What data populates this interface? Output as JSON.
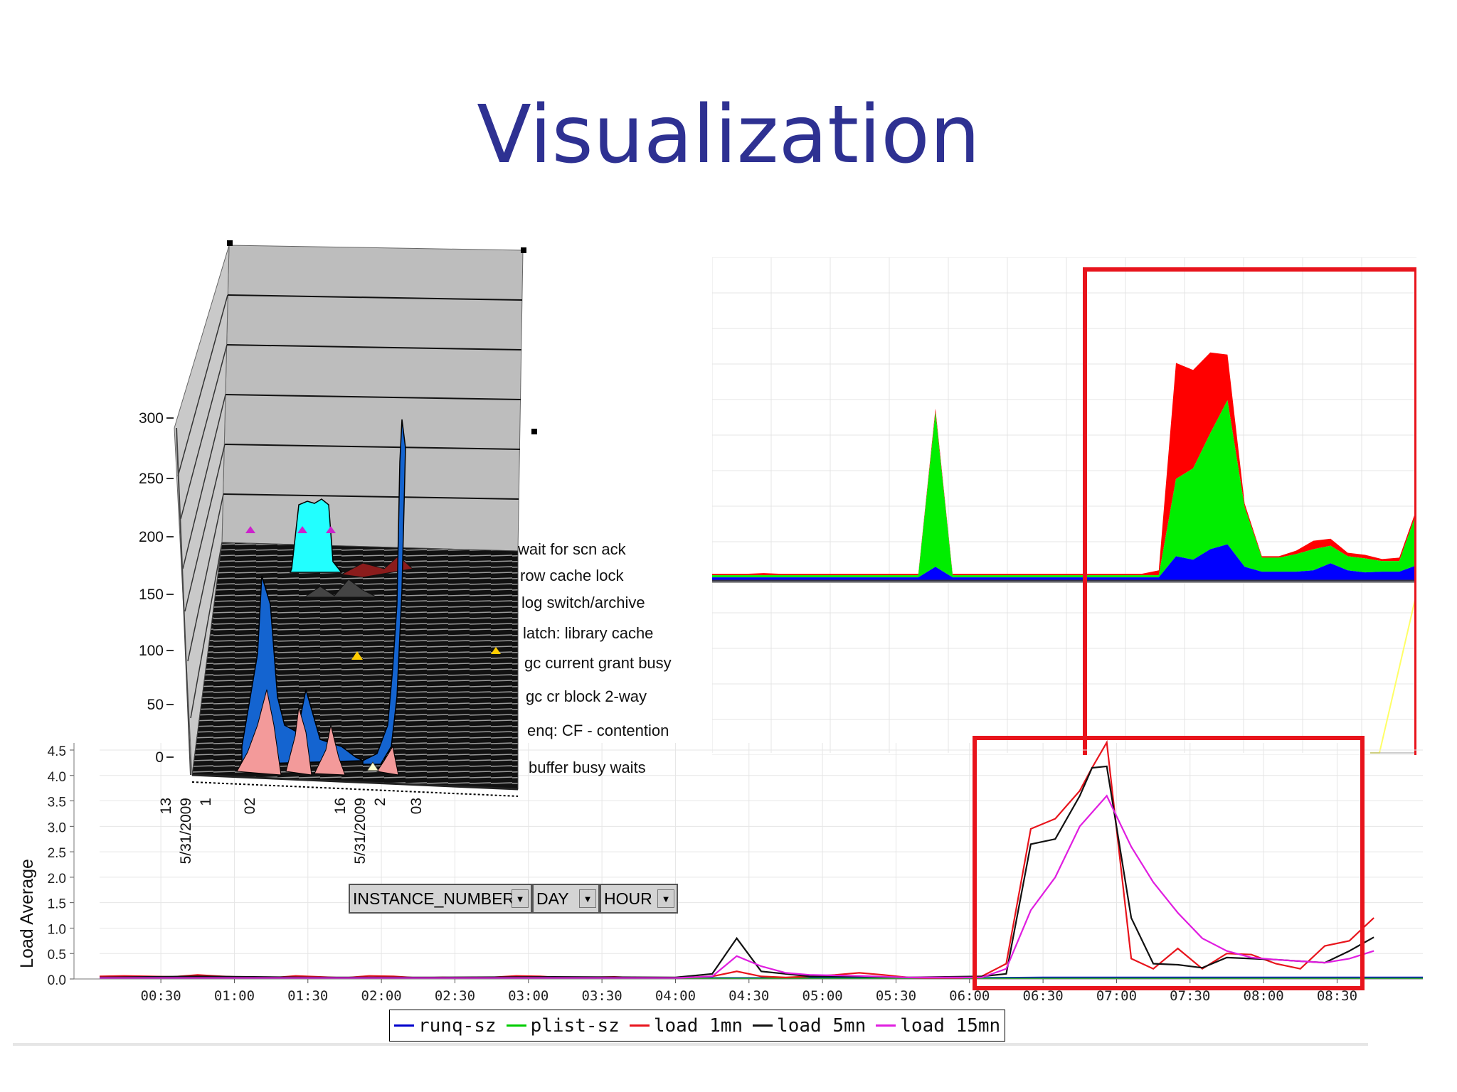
{
  "slide": {
    "title": "Visualization"
  },
  "pivot_fields": [
    "INSTANCE_NUMBER",
    "DAY",
    "HOUR"
  ],
  "colors": {
    "title": "#2e3192",
    "highlight": "#e8141c"
  },
  "chart_data": [
    {
      "type": "area",
      "stacked": true,
      "description_id": "top-right-stacked-area",
      "axes_labels_visible": false,
      "series": [
        {
          "color": "#0000ff",
          "values": [
            5,
            5,
            5,
            5,
            5,
            5,
            5,
            5,
            5,
            5,
            5,
            5,
            5,
            20,
            5,
            5,
            5,
            5,
            5,
            5,
            5,
            5,
            5,
            5,
            5,
            5,
            5,
            35,
            30,
            45,
            52,
            20,
            13,
            13,
            13,
            15,
            25,
            15,
            12,
            13,
            13,
            22
          ]
        },
        {
          "color": "#00ee00",
          "values": [
            3,
            3,
            3,
            3,
            3,
            3,
            3,
            3,
            3,
            3,
            3,
            3,
            3,
            220,
            3,
            3,
            3,
            3,
            3,
            3,
            3,
            3,
            3,
            3,
            3,
            3,
            3,
            110,
            130,
            165,
            205,
            85,
            20,
            20,
            25,
            30,
            25,
            20,
            20,
            15,
            15,
            75
          ]
        },
        {
          "color": "#ff0000",
          "values": [
            2,
            2,
            2,
            3,
            2,
            2,
            2,
            2,
            2,
            2,
            2,
            2,
            2,
            5,
            2,
            2,
            2,
            2,
            2,
            2,
            2,
            2,
            2,
            2,
            2,
            2,
            7,
            165,
            140,
            115,
            65,
            5,
            2,
            2,
            5,
            12,
            10,
            5,
            5,
            3,
            5,
            5
          ]
        }
      ],
      "highlight_box": "red"
    },
    {
      "type": "line",
      "description_id": "load-average",
      "ylabel": "Load Average",
      "ylim": [
        0,
        4.5
      ],
      "yticks": [
        "0.0",
        "0.5",
        "1.0",
        "1.5",
        "2.0",
        "2.5",
        "3.0",
        "3.5",
        "4.0",
        "4.5"
      ],
      "x_ticks": [
        "00:30",
        "01:00",
        "01:30",
        "02:00",
        "02:30",
        "03:00",
        "03:30",
        "04:00",
        "04:30",
        "05:00",
        "05:30",
        "06:00",
        "06:30",
        "07:00",
        "07:30",
        "08:00",
        "08:30"
      ],
      "x_range_minutes": [
        5,
        545
      ],
      "series": [
        {
          "name": "runq-sz",
          "color": "#0000cc",
          "points": [
            [
              5,
              0.03
            ],
            [
              30,
              0.03
            ],
            [
              60,
              0.03
            ],
            [
              90,
              0.02
            ],
            [
              120,
              0.02
            ],
            [
              150,
              0.02
            ],
            [
              180,
              0.02
            ],
            [
              210,
              0.02
            ],
            [
              240,
              0.02
            ],
            [
              270,
              0.02
            ],
            [
              300,
              0.02
            ],
            [
              330,
              0.02
            ],
            [
              360,
              0.02
            ],
            [
              390,
              0.03
            ],
            [
              420,
              0.03
            ],
            [
              450,
              0.03
            ],
            [
              480,
              0.03
            ],
            [
              510,
              0.03
            ],
            [
              545,
              0.03
            ]
          ]
        },
        {
          "name": "plist-sz",
          "color": "#00cc00",
          "points": [
            [
              5,
              0.01
            ],
            [
              545,
              0.01
            ]
          ]
        },
        {
          "name": "load 1mn",
          "color": "#e8141c",
          "points": [
            [
              5,
              0.05
            ],
            [
              15,
              0.06
            ],
            [
              25,
              0.05
            ],
            [
              35,
              0.04
            ],
            [
              45,
              0.08
            ],
            [
              55,
              0.05
            ],
            [
              65,
              0.03
            ],
            [
              75,
              0.02
            ],
            [
              85,
              0.06
            ],
            [
              95,
              0.04
            ],
            [
              105,
              0.02
            ],
            [
              115,
              0.06
            ],
            [
              125,
              0.05
            ],
            [
              135,
              0.02
            ],
            [
              145,
              0.03
            ],
            [
              155,
              0.02
            ],
            [
              165,
              0.03
            ],
            [
              175,
              0.06
            ],
            [
              185,
              0.05
            ],
            [
              195,
              0.02
            ],
            [
              205,
              0.03
            ],
            [
              215,
              0.04
            ],
            [
              225,
              0.02
            ],
            [
              235,
              0.02
            ],
            [
              245,
              0.03
            ],
            [
              255,
              0.05
            ],
            [
              265,
              0.15
            ],
            [
              275,
              0.05
            ],
            [
              285,
              0.03
            ],
            [
              295,
              0.05
            ],
            [
              305,
              0.08
            ],
            [
              315,
              0.12
            ],
            [
              325,
              0.08
            ],
            [
              335,
              0.03
            ],
            [
              345,
              0.02
            ],
            [
              355,
              0.02
            ],
            [
              365,
              0.05
            ],
            [
              375,
              0.3
            ],
            [
              385,
              2.95
            ],
            [
              395,
              3.15
            ],
            [
              405,
              3.7
            ],
            [
              410,
              4.15
            ],
            [
              416,
              4.65
            ],
            [
              426,
              0.4
            ],
            [
              435,
              0.2
            ],
            [
              445,
              0.6
            ],
            [
              455,
              0.2
            ],
            [
              465,
              0.5
            ],
            [
              475,
              0.48
            ],
            [
              485,
              0.3
            ],
            [
              495,
              0.2
            ],
            [
              505,
              0.65
            ],
            [
              515,
              0.75
            ],
            [
              525,
              1.2
            ]
          ]
        },
        {
          "name": "load 5mn",
          "color": "#111111",
          "points": [
            [
              5,
              0.03
            ],
            [
              45,
              0.05
            ],
            [
              90,
              0.03
            ],
            [
              140,
              0.03
            ],
            [
              190,
              0.04
            ],
            [
              240,
              0.03
            ],
            [
              255,
              0.1
            ],
            [
              265,
              0.8
            ],
            [
              275,
              0.15
            ],
            [
              295,
              0.05
            ],
            [
              315,
              0.05
            ],
            [
              335,
              0.03
            ],
            [
              365,
              0.05
            ],
            [
              375,
              0.1
            ],
            [
              385,
              2.65
            ],
            [
              395,
              2.75
            ],
            [
              405,
              3.6
            ],
            [
              410,
              4.15
            ],
            [
              416,
              4.18
            ],
            [
              426,
              1.2
            ],
            [
              435,
              0.3
            ],
            [
              445,
              0.28
            ],
            [
              455,
              0.22
            ],
            [
              465,
              0.42
            ],
            [
              475,
              0.4
            ],
            [
              485,
              0.38
            ],
            [
              495,
              0.35
            ],
            [
              505,
              0.32
            ],
            [
              515,
              0.55
            ],
            [
              525,
              0.82
            ]
          ]
        },
        {
          "name": "load 15mn",
          "color": "#e01ee0",
          "points": [
            [
              5,
              0.02
            ],
            [
              90,
              0.02
            ],
            [
              190,
              0.02
            ],
            [
              240,
              0.02
            ],
            [
              255,
              0.05
            ],
            [
              265,
              0.45
            ],
            [
              275,
              0.25
            ],
            [
              285,
              0.12
            ],
            [
              295,
              0.08
            ],
            [
              315,
              0.06
            ],
            [
              335,
              0.03
            ],
            [
              365,
              0.03
            ],
            [
              375,
              0.2
            ],
            [
              385,
              1.35
            ],
            [
              395,
              2.0
            ],
            [
              405,
              3.0
            ],
            [
              416,
              3.6
            ],
            [
              426,
              2.6
            ],
            [
              435,
              1.9
            ],
            [
              445,
              1.3
            ],
            [
              455,
              0.8
            ],
            [
              465,
              0.55
            ],
            [
              475,
              0.42
            ],
            [
              485,
              0.38
            ],
            [
              495,
              0.35
            ],
            [
              505,
              0.32
            ],
            [
              515,
              0.4
            ],
            [
              525,
              0.55
            ]
          ]
        }
      ],
      "legend": [
        "runq-sz",
        "plist-sz",
        "load 1mn",
        "load 5mn",
        "load 15mn"
      ],
      "highlight_box": "red"
    },
    {
      "type": "area",
      "description_id": "3d-wait-events",
      "is_3d": true,
      "ylim": [
        0,
        300
      ],
      "yticks": [
        "0",
        "50",
        "100",
        "150",
        "200",
        "250",
        "300"
      ],
      "x_groups": [
        {
          "instance": "1",
          "day": "5/31/2009",
          "hour": "13"
        },
        {
          "instance": "",
          "day": "",
          "hour": "02"
        },
        {
          "instance": "2",
          "day": "5/31/2009",
          "hour": "16"
        },
        {
          "instance": "",
          "day": "",
          "hour": "03"
        }
      ],
      "series": [
        {
          "name": "wait for scn ack"
        },
        {
          "name": "row cache lock"
        },
        {
          "name": "log switch/archive"
        },
        {
          "name": "latch: library cache"
        },
        {
          "name": "gc current grant busy"
        },
        {
          "name": "gc cr block 2-way"
        },
        {
          "name": "enq: CF - contention"
        },
        {
          "name": "buffer busy waits"
        }
      ]
    }
  ]
}
